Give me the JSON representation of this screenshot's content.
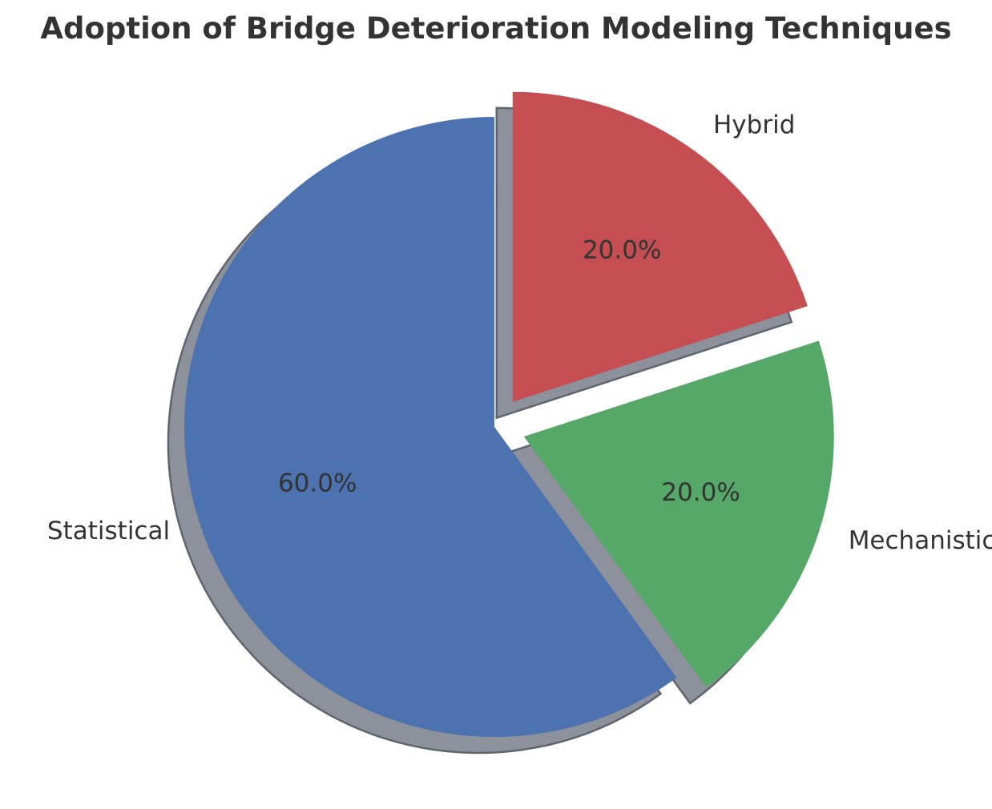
{
  "chart_data": {
    "type": "pie",
    "title": "Adoption of Bridge Deterioration Modeling Techniques",
    "start_angle_deg": 90,
    "direction": "counterclockwise",
    "shadow": true,
    "slices": [
      {
        "label": "Statistical",
        "value": 60,
        "pct_label": "60.0%",
        "color": "#4c72b0",
        "explode": 0
      },
      {
        "label": "Mechanistic",
        "value": 20,
        "pct_label": "20.0%",
        "color": "#55a868",
        "explode": 0.1
      },
      {
        "label": "Hybrid",
        "value": 20,
        "pct_label": "20.0%",
        "color": "#c44e52",
        "explode": 0.1
      }
    ]
  }
}
